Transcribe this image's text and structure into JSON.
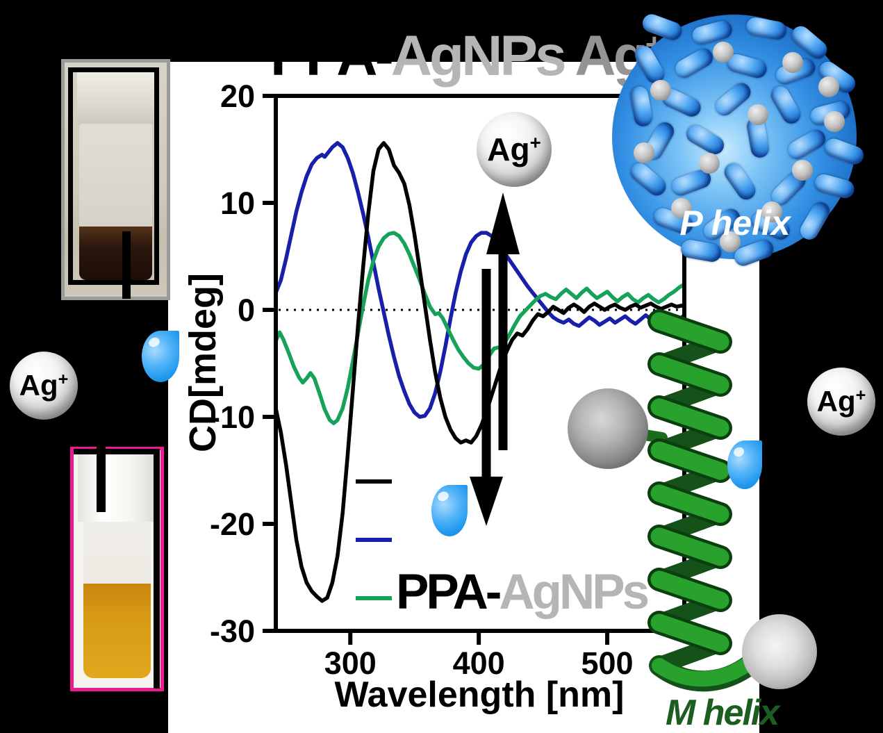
{
  "background": "#000000",
  "panel_bg": "#ffffff",
  "title": {
    "segments": [
      {
        "text": "PPA-",
        "color": "#000000"
      },
      {
        "text": "AgNPs",
        "color": "#b5b5b5"
      },
      {
        "text": " Ag",
        "color": "#949494"
      }
    ],
    "superscript": {
      "text": "+",
      "color": "#949494"
    }
  },
  "labels": {
    "silver_ion": {
      "text": "Ag",
      "sup": "+"
    },
    "p_helix": "P helix",
    "m_helix": "M helix"
  },
  "legend": {
    "rows": [
      {
        "id": "black",
        "color": "#000000",
        "label": ""
      },
      {
        "id": "blue",
        "color": "#181fa8",
        "label": ""
      },
      {
        "id": "green",
        "color": "#16a259",
        "label_parts": [
          {
            "text": "PPA-",
            "color": "#000000"
          },
          {
            "text": "AgNPs",
            "color": "#b5b5b5"
          }
        ]
      }
    ]
  },
  "chart_data": {
    "type": "line",
    "title": "PPA-AgNPs Ag+",
    "xlabel": "Wavelength [nm]",
    "ylabel": "CD[mdeg]",
    "xlim": [
      242,
      560
    ],
    "ylim": [
      -30,
      20
    ],
    "x_ticks": [
      300,
      400,
      500
    ],
    "y_ticks": [
      20,
      10,
      0,
      -10,
      -20,
      -30
    ],
    "zero_line": true,
    "grid": false,
    "legend_position": "lower-left-inside",
    "series": [
      {
        "id": "blue",
        "legend_label": "",
        "color": "#181fa8",
        "points": [
          [
            242,
            1.6
          ],
          [
            246,
            2.8
          ],
          [
            250,
            4.8
          ],
          [
            254,
            7
          ],
          [
            258,
            9.2
          ],
          [
            262,
            11
          ],
          [
            266,
            12.5
          ],
          [
            270,
            13.6
          ],
          [
            274,
            14.2
          ],
          [
            278,
            14.5
          ],
          [
            280,
            14.3
          ],
          [
            282,
            14.6
          ],
          [
            286,
            15.2
          ],
          [
            290,
            15.6
          ],
          [
            294,
            15.2
          ],
          [
            298,
            14.2
          ],
          [
            302,
            12.8
          ],
          [
            306,
            11
          ],
          [
            310,
            9
          ],
          [
            314,
            6.8
          ],
          [
            318,
            4.4
          ],
          [
            322,
            2
          ],
          [
            326,
            -0.2
          ],
          [
            330,
            -2.4
          ],
          [
            334,
            -4.4
          ],
          [
            338,
            -6.2
          ],
          [
            342,
            -7.6
          ],
          [
            346,
            -8.8
          ],
          [
            350,
            -9.6
          ],
          [
            354,
            -10
          ],
          [
            358,
            -9.9
          ],
          [
            362,
            -9.2
          ],
          [
            366,
            -7.8
          ],
          [
            370,
            -5.8
          ],
          [
            374,
            -3.4
          ],
          [
            378,
            -0.8
          ],
          [
            382,
            1.6
          ],
          [
            386,
            3.6
          ],
          [
            390,
            5.2
          ],
          [
            394,
            6.3
          ],
          [
            398,
            6.9
          ],
          [
            402,
            7.2
          ],
          [
            406,
            7.2
          ],
          [
            410,
            6.9
          ],
          [
            414,
            6.4
          ],
          [
            418,
            5.7
          ],
          [
            422,
            5
          ],
          [
            426,
            4.3
          ],
          [
            430,
            3.6
          ],
          [
            434,
            2.9
          ],
          [
            438,
            2.2
          ],
          [
            442,
            1.6
          ],
          [
            446,
            1
          ],
          [
            450,
            0.4
          ],
          [
            454,
            -0.2
          ],
          [
            458,
            -0.7
          ],
          [
            462,
            -1
          ],
          [
            466,
            -1.2
          ],
          [
            470,
            -0.9
          ],
          [
            474,
            -1.3
          ],
          [
            478,
            -1.5
          ],
          [
            482,
            -1.1
          ],
          [
            486,
            -0.7
          ],
          [
            490,
            -1
          ],
          [
            494,
            -1.4
          ],
          [
            498,
            -1.1
          ],
          [
            502,
            -0.8
          ],
          [
            506,
            -1.2
          ],
          [
            510,
            -0.9
          ],
          [
            514,
            -0.6
          ],
          [
            518,
            -1
          ],
          [
            522,
            -1.3
          ],
          [
            526,
            -0.9
          ],
          [
            530,
            -0.5
          ],
          [
            534,
            -0.9
          ],
          [
            538,
            -1.2
          ],
          [
            542,
            -0.8
          ],
          [
            546,
            -0.4
          ],
          [
            550,
            -0.8
          ],
          [
            554,
            -1.1
          ],
          [
            558,
            -0.7
          ],
          [
            560,
            -0.5
          ]
        ]
      },
      {
        "id": "green",
        "legend_label": "PPA-AgNPs",
        "color": "#16a259",
        "points": [
          [
            242,
            -2.9
          ],
          [
            245,
            -2.1
          ],
          [
            248,
            -2.8
          ],
          [
            252,
            -4
          ],
          [
            256,
            -5.3
          ],
          [
            260,
            -6.3
          ],
          [
            263,
            -6.8
          ],
          [
            266,
            -6.4
          ],
          [
            269,
            -5.9
          ],
          [
            272,
            -6.4
          ],
          [
            276,
            -7.8
          ],
          [
            280,
            -9.3
          ],
          [
            284,
            -10.3
          ],
          [
            287,
            -10.6
          ],
          [
            290,
            -10.3
          ],
          [
            294,
            -9.2
          ],
          [
            298,
            -7.3
          ],
          [
            302,
            -4.8
          ],
          [
            306,
            -2.2
          ],
          [
            310,
            0.4
          ],
          [
            314,
            2.8
          ],
          [
            318,
            4.6
          ],
          [
            322,
            5.9
          ],
          [
            326,
            6.7
          ],
          [
            330,
            7.1
          ],
          [
            334,
            7.2
          ],
          [
            338,
            6.9
          ],
          [
            342,
            6.2
          ],
          [
            346,
            5.2
          ],
          [
            350,
            4
          ],
          [
            354,
            2.8
          ],
          [
            358,
            1.5
          ],
          [
            362,
            0.3
          ],
          [
            366,
            -0.4
          ],
          [
            369,
            -0.3
          ],
          [
            372,
            -0.8
          ],
          [
            376,
            -1.8
          ],
          [
            380,
            -2.8
          ],
          [
            384,
            -3.7
          ],
          [
            388,
            -4.4
          ],
          [
            392,
            -5
          ],
          [
            396,
            -5.4
          ],
          [
            400,
            -5.5
          ],
          [
            404,
            -5.1
          ],
          [
            408,
            -4.3
          ],
          [
            412,
            -3.6
          ],
          [
            416,
            -3.5
          ],
          [
            420,
            -3.1
          ],
          [
            424,
            -2.3
          ],
          [
            428,
            -1.4
          ],
          [
            432,
            -0.6
          ],
          [
            436,
            -0.1
          ],
          [
            440,
            0.4
          ],
          [
            444,
            0.9
          ],
          [
            448,
            1.3
          ],
          [
            452,
            1.5
          ],
          [
            456,
            1.2
          ],
          [
            460,
            1
          ],
          [
            464,
            1.5
          ],
          [
            468,
            1.9
          ],
          [
            472,
            1.5
          ],
          [
            476,
            1.1
          ],
          [
            480,
            1.6
          ],
          [
            484,
            2
          ],
          [
            488,
            1.5
          ],
          [
            492,
            1.1
          ],
          [
            496,
            1.4
          ],
          [
            500,
            1.7
          ],
          [
            504,
            1.2
          ],
          [
            508,
            0.8
          ],
          [
            512,
            1.2
          ],
          [
            516,
            1.5
          ],
          [
            520,
            1
          ],
          [
            524,
            0.7
          ],
          [
            528,
            1.1
          ],
          [
            532,
            1.4
          ],
          [
            536,
            1
          ],
          [
            540,
            0.7
          ],
          [
            544,
            1
          ],
          [
            548,
            1.4
          ],
          [
            552,
            1.7
          ],
          [
            556,
            2.1
          ],
          [
            560,
            2.4
          ]
        ]
      },
      {
        "id": "black",
        "legend_label": "",
        "color": "#000000",
        "points": [
          [
            242,
            -9.2
          ],
          [
            246,
            -11.5
          ],
          [
            250,
            -14.5
          ],
          [
            254,
            -18
          ],
          [
            258,
            -21.5
          ],
          [
            262,
            -24
          ],
          [
            266,
            -25.5
          ],
          [
            270,
            -26.3
          ],
          [
            274,
            -26.8
          ],
          [
            278,
            -27.2
          ],
          [
            282,
            -26.9
          ],
          [
            286,
            -25.5
          ],
          [
            290,
            -23
          ],
          [
            294,
            -19
          ],
          [
            298,
            -13.5
          ],
          [
            302,
            -7.5
          ],
          [
            306,
            -1.5
          ],
          [
            310,
            4
          ],
          [
            314,
            9
          ],
          [
            318,
            13
          ],
          [
            322,
            15
          ],
          [
            326,
            15.6
          ],
          [
            330,
            15
          ],
          [
            334,
            13.5
          ],
          [
            338,
            12.8
          ],
          [
            342,
            11.8
          ],
          [
            346,
            9.8
          ],
          [
            350,
            7
          ],
          [
            354,
            3.8
          ],
          [
            358,
            0.5
          ],
          [
            362,
            -2.8
          ],
          [
            366,
            -5.8
          ],
          [
            370,
            -8.2
          ],
          [
            374,
            -10
          ],
          [
            378,
            -11.2
          ],
          [
            382,
            -12
          ],
          [
            386,
            -12.4
          ],
          [
            390,
            -12.2
          ],
          [
            394,
            -12.4
          ],
          [
            398,
            -11.8
          ],
          [
            402,
            -10.8
          ],
          [
            406,
            -9.5
          ],
          [
            410,
            -8
          ],
          [
            414,
            -6.5
          ],
          [
            418,
            -5
          ],
          [
            422,
            -3.8
          ],
          [
            426,
            -2.8
          ],
          [
            430,
            -2.2
          ],
          [
            434,
            -2.4
          ],
          [
            438,
            -1.8
          ],
          [
            442,
            -1
          ],
          [
            446,
            -0.4
          ],
          [
            450,
            -0.6
          ],
          [
            454,
            -0.2
          ],
          [
            458,
            0.3
          ],
          [
            462,
            0
          ],
          [
            466,
            -0.3
          ],
          [
            470,
            0.2
          ],
          [
            474,
            0.5
          ],
          [
            478,
            0.2
          ],
          [
            482,
            -0.2
          ],
          [
            486,
            0.3
          ],
          [
            490,
            0.6
          ],
          [
            494,
            0.3
          ],
          [
            498,
            0
          ],
          [
            502,
            0.3
          ],
          [
            506,
            0.5
          ],
          [
            510,
            0.2
          ],
          [
            514,
            0
          ],
          [
            518,
            0.3
          ],
          [
            522,
            0.5
          ],
          [
            526,
            0.2
          ],
          [
            530,
            0.4
          ],
          [
            534,
            0.6
          ],
          [
            538,
            0.3
          ],
          [
            542,
            0.1
          ],
          [
            546,
            0.3
          ],
          [
            550,
            0.5
          ],
          [
            554,
            0.3
          ],
          [
            558,
            0.4
          ],
          [
            560,
            0.3
          ]
        ]
      }
    ]
  },
  "photo_borders": {
    "top_photo": "#9b9b9b",
    "bottom_photo": "#ee1a92"
  },
  "accents": {
    "droplet_blue": "#259bf0",
    "nanoparticle_blue": "#3390e4",
    "helix_green": "#27962b"
  }
}
